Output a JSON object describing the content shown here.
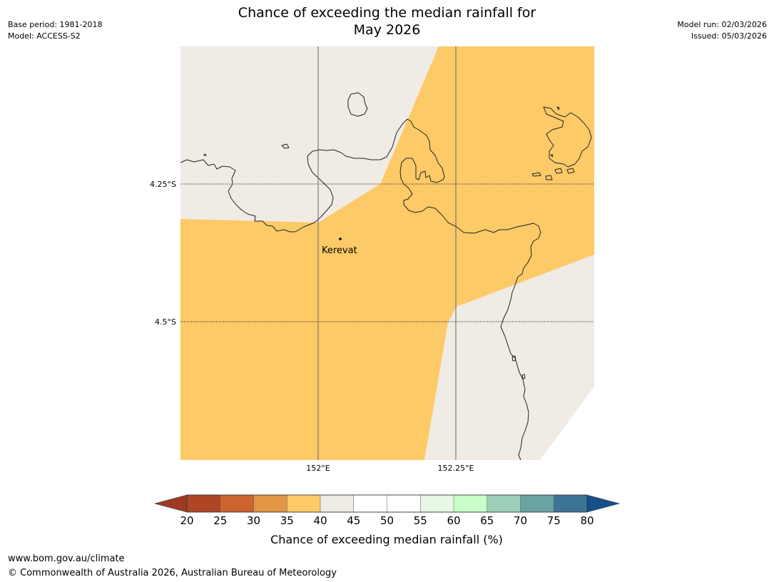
{
  "title": {
    "line1": "Chance of exceeding the median rainfall for",
    "line2": "May 2026"
  },
  "meta": {
    "base_period": "Base period: 1981-2018",
    "model": "Model: ACCESS-S2",
    "model_run": "Model run: 02/03/2026",
    "issued": "Issued: 05/03/2026"
  },
  "map": {
    "lat_labels": [
      "4.25°S",
      "4.5°S"
    ],
    "lon_labels": [
      "152°E",
      "152.25°E"
    ],
    "place": "Kerevat",
    "colors": {
      "neutral": "#f0ebe5",
      "band_35_40": "#fdca68",
      "coast": "#222222",
      "grid": "#555555"
    },
    "categories": [
      {
        "range": "35-40",
        "color": "#fdca68"
      },
      {
        "range": "40-45",
        "color": "#f0ebe5"
      }
    ]
  },
  "colorbar": {
    "ticks": [
      "20",
      "25",
      "30",
      "35",
      "40",
      "45",
      "50",
      "55",
      "60",
      "65",
      "70",
      "75",
      "80"
    ],
    "colors": [
      "#ae4625",
      "#cb6431",
      "#e09645",
      "#fdca68",
      "#f0ebe5",
      "#ffffff",
      "#ffffff",
      "#e8f7e6",
      "#c8fcc8",
      "#9dd0b8",
      "#6aa3a3",
      "#3c7496"
    ],
    "under_color": "#9c3a24",
    "over_color": "#14508a",
    "label": "Chance of exceeding median rainfall (%)"
  },
  "footer": {
    "url": "www.bom.gov.au/climate",
    "copyright": "© Commonwealth of Australia 2026, Australian Bureau of Meteorology"
  }
}
